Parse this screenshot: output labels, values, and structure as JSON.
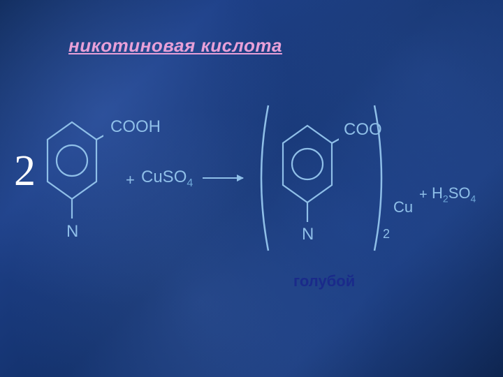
{
  "title": {
    "text": "никотиновая кислота",
    "color": "#e8a0d8",
    "fontsize": 26
  },
  "left": {
    "big2": {
      "text": "2",
      "color": "#ffffff",
      "fontsize": 62
    },
    "cooh": {
      "text": "COOH",
      "color": "#8fbfe8",
      "fontsize": 24
    },
    "plus": {
      "text": "+",
      "color": "#8fbfe8",
      "fontsize": 22
    },
    "cuso4_Cu": {
      "text": "CuSO",
      "color": "#8fbfe8",
      "fontsize": 24
    },
    "cuso4_4": {
      "text": "4",
      "color": "#6fa8d8",
      "fontsize": 16
    },
    "n": {
      "text": "N",
      "color": "#8fbfe8",
      "fontsize": 24
    },
    "ring_stroke": "#8fbfe8"
  },
  "arrow": {
    "color": "#8fbfe8",
    "width": 58
  },
  "right": {
    "coo": {
      "text": "COO",
      "color": "#8fbfe8",
      "fontsize": 24
    },
    "n": {
      "text": "N",
      "color": "#8fbfe8",
      "fontsize": 24
    },
    "cu": {
      "text": "Cu",
      "color": "#8fbfe8",
      "fontsize": 22
    },
    "two": {
      "text": "2",
      "color": "#8fbfe8",
      "fontsize": 18
    },
    "plus": {
      "text": "+",
      "color": "#8fbfe8",
      "fontsize": 20
    },
    "h2so4_H": {
      "text": "H",
      "color": "#8fbfe8",
      "fontsize": 22
    },
    "h2so4_2": {
      "text": "2",
      "color": "#6fa8d8",
      "fontsize": 14
    },
    "h2so4_SO": {
      "text": "SO",
      "color": "#8fbfe8",
      "fontsize": 22
    },
    "h2so4_4": {
      "text": "4",
      "color": "#6fa8d8",
      "fontsize": 14
    },
    "ring_stroke": "#8fbfe8",
    "paren_stroke": "#8fbfe8"
  },
  "caption": {
    "text": "голубой",
    "color": "#1a2a8a",
    "fontsize": 22
  }
}
